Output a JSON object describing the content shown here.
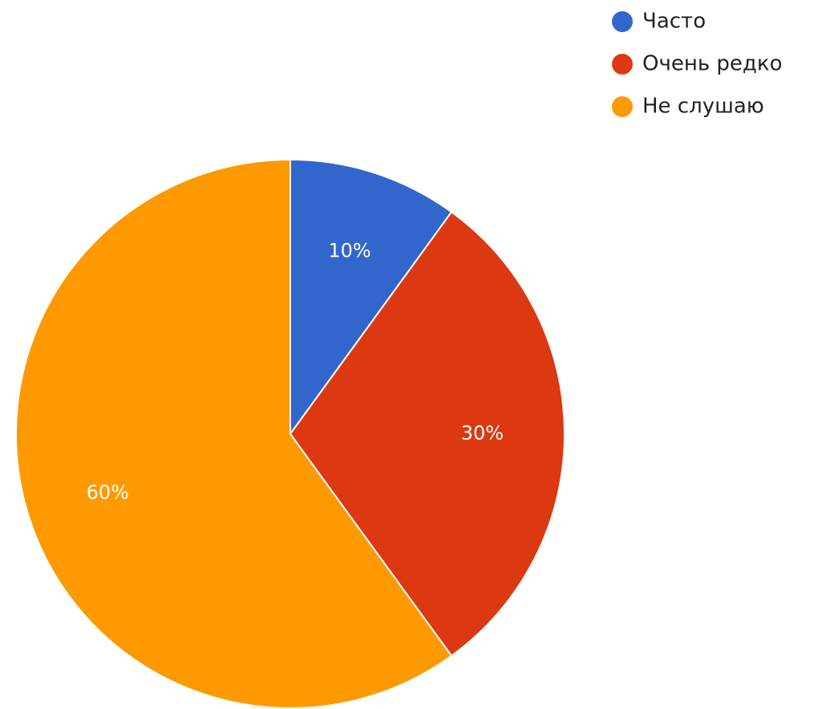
{
  "chart_data": {
    "type": "pie",
    "categories": [
      "Часто",
      "Очень редко",
      "Не слушаю"
    ],
    "values": [
      10,
      30,
      60
    ],
    "labels": [
      "10%",
      "30%",
      "60%"
    ],
    "colors": [
      "#3366cc",
      "#dc3912",
      "#ff9900"
    ],
    "legend_position": "top-right"
  }
}
